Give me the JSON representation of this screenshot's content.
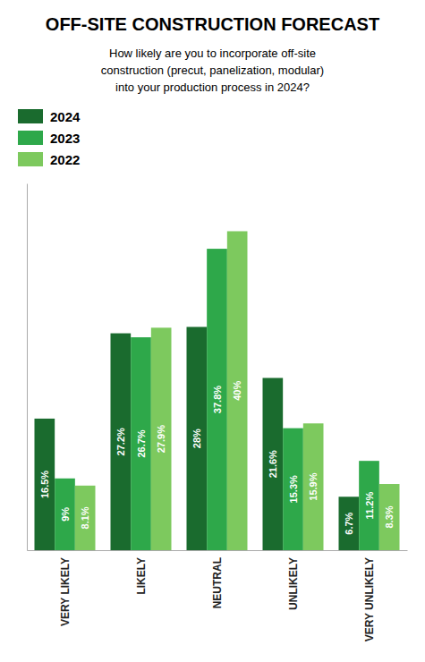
{
  "chart_data": {
    "type": "bar",
    "title": "OFF-SITE CONSTRUCTION FORECAST",
    "subtitle": "How likely are you to incorporate off-site\nconstruction (precut, panelization, modular)\ninto your production process in 2024?",
    "categories": [
      "VERY LIKELY",
      "LIKELY",
      "NEUTRAL",
      "UNLIKELY",
      "VERY UNLIKELY"
    ],
    "series": [
      {
        "name": "2024",
        "color": "#1a6b2e",
        "values": [
          16.5,
          27.2,
          28.0,
          21.6,
          6.7
        ],
        "value_labels": [
          "16.5%",
          "27.2%",
          "28%",
          "21.6%",
          "6.7%"
        ]
      },
      {
        "name": "2023",
        "color": "#2ea84a",
        "values": [
          9.0,
          26.7,
          37.8,
          15.3,
          11.2
        ],
        "value_labels": [
          "9%",
          "26.7%",
          "37.8%",
          "15.3%",
          "11.2%"
        ]
      },
      {
        "name": "2022",
        "color": "#7dc95e",
        "values": [
          8.1,
          27.9,
          40.0,
          15.9,
          8.3
        ],
        "value_labels": [
          "8.1%",
          "27.9%",
          "40%",
          "15.9%",
          "8.3%"
        ]
      }
    ],
    "ylim": [
      0,
      46
    ],
    "grid": false,
    "legend": "upper-left",
    "data_labels": true,
    "tick_labels": "x"
  }
}
